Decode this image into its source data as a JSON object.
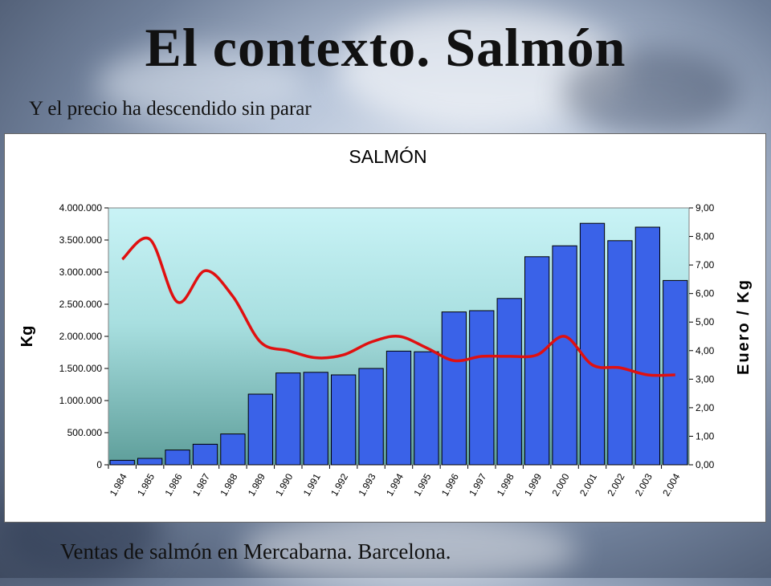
{
  "slide": {
    "title": "El contexto. Salmón",
    "subtitle": "Y el precio ha descendido sin parar",
    "caption": "Ventas de salmón en Mercabarna. Barcelona."
  },
  "colors": {
    "bar": "#3a62e8",
    "line": "#e01010",
    "plot_top": "#c9f3f6",
    "plot_bottom": "#5e9e9a"
  },
  "chart_data": {
    "type": "bar",
    "title": "SALMÓN",
    "ylabel": "Kg",
    "y2label": "Euero / Kg",
    "categories": [
      "1.984",
      "1.985",
      "1.986",
      "1.987",
      "1.988",
      "1.989",
      "1.990",
      "1.991",
      "1.992",
      "1.993",
      "1.994",
      "1.995",
      "1.996",
      "1.997",
      "1.998",
      "1.999",
      "2.000",
      "2.001",
      "2.002",
      "2.003",
      "2.004"
    ],
    "ylim": [
      0,
      4000000
    ],
    "y2lim": [
      0,
      9
    ],
    "yticks": [
      "0",
      "500.000",
      "1.000.000",
      "1.500.000",
      "2.000.000",
      "2.500.000",
      "3.000.000",
      "3.500.000",
      "4.000.000"
    ],
    "y2ticks": [
      "0,00",
      "1,00",
      "2,00",
      "3,00",
      "4,00",
      "5,00",
      "6,00",
      "7,00",
      "8,00",
      "9,00"
    ],
    "series": [
      {
        "type": "bar",
        "axis": "left",
        "values": [
          70000,
          100000,
          230000,
          320000,
          480000,
          1100000,
          1430000,
          1440000,
          1400000,
          1500000,
          1770000,
          1760000,
          2380000,
          2400000,
          2590000,
          3240000,
          3410000,
          3760000,
          3490000,
          3700000,
          2870000
        ]
      },
      {
        "type": "line",
        "axis": "right",
        "values": [
          7.2,
          7.9,
          5.7,
          6.8,
          5.9,
          4.3,
          4.0,
          3.75,
          3.85,
          4.3,
          4.5,
          4.1,
          3.65,
          3.8,
          3.8,
          3.85,
          4.5,
          3.5,
          3.4,
          3.15,
          3.15
        ]
      }
    ],
    "grid": false,
    "legend": "none"
  }
}
